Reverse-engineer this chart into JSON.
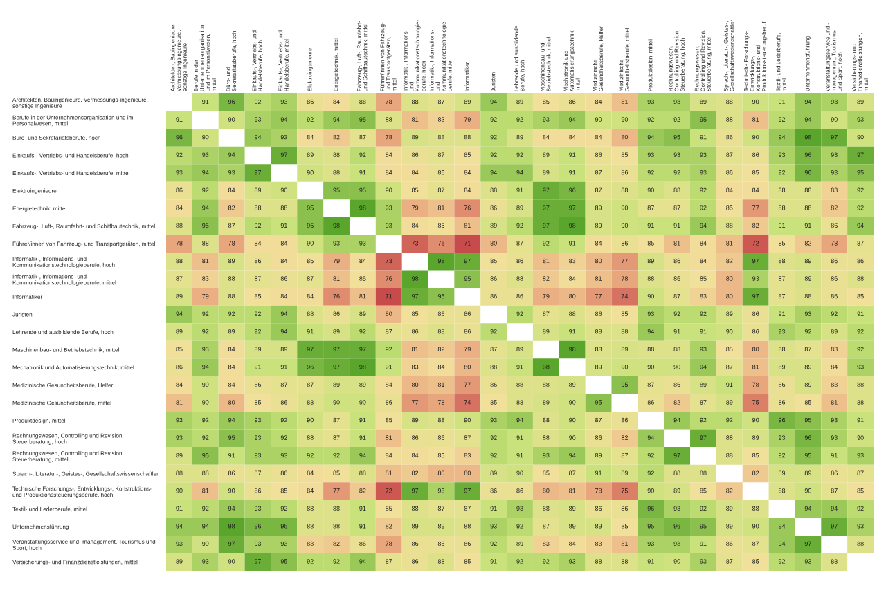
{
  "chart_data": {
    "type": "heatmap",
    "categories": [
      "Architekten, Bauingenieure,\nVermessungsingenieure,\nsonstige Ingenieure",
      "Berufe in der\nUnternehmensorganisation\nund im Personalwesen,\nmittel",
      "Büro- und\nSekretariatsberufe, hoch",
      "Einkaufs-, Vertriebs- und\nHandelsberufe, hoch",
      "Einkaufs-, Vertriebs- und\nHandelsberufe, mittel",
      "Elektroingenieure",
      "Energietechnik, mittel",
      "Fahrzeug-, Luft-, Raumfahrt-\nund Schiffbautechnik, mittel",
      "Führer/innen von Fahrzeug-\nund Transportgeräten,\nmittel",
      "Informatik-, Informations-\nund\nKommunikationstechnologie-\nberufe, hoch",
      "Informatik-, Informations-\nund\nKommunikationstechnologie-\nberufe, mittel",
      "Informatiker",
      "Juristen",
      "Lehrende und ausbildende\nBerufe, hoch",
      "Maschinenbau- und\nBetriebstechnik, mittel",
      "Mechatronik und\nAutomatisierungstechnik,\nmittel",
      "Medizinische\nGesundheitsberufe, Helfer",
      "Medizinische\nGesundheitsberufe, mittel",
      "Produktdesign, mittel",
      "Rechnungswesen,\nControlling und Revision,\nSteuerberatung, hoch",
      "Rechnungswesen,\nControlling und Revision,\nSteuerberatung, mittel",
      "Sprach-, Literatur-, Geistes-,\nGesellschaftswissenschaftler",
      "Technische Forschungs-,\nEntwicklungs-,\nKonstruktions- und\nProduktionssteuerungsberuf",
      "Textil- und Lederberufe,\nmittel",
      "Unternehmensführung",
      "Veranstaltungsservice und -\nmanagement, Tourismus\nund Sport, hoch",
      "Versicherungs- und\nFinanzdienstleistungen,\nmittel"
    ],
    "y_categories": [
      "Architekten, Bauingenieure, Vermessungs-ingenieure,\nsonstige Ingenieure",
      "Berufe in der Unternehmensorganisation und im\nPersonalwesen, mittel",
      "Büro- und Sekretariatsberufe, hoch",
      "Einkaufs-, Vertriebs- und Handelsberufe, hoch",
      "Einkaufs-, Vertriebs- und Handelsberufe, mittel",
      "Elektroingenieure",
      "Energietechnik, mittel",
      "Fahrzeug-, Luft-, Raumfahrt- und Schiffbautechnik, mittel",
      "Führer/innen von Fahrzeug- und Transportgeräten, mittel",
      "Informatik-, Informations- und\nKommunikationstechnologieberufe, hoch",
      "Informatik-, Informations- und\nKommunikationstechnologieberufe, mittel",
      "Informatiker",
      "Juristen",
      "Lehrende und ausbildende Berufe, hoch",
      "Maschinenbau- und Betriebstechnik, mittel",
      "Mechatronik und Automatisierungstechnik, mittel",
      "Medizinische Gesundheitsberufe, Helfer",
      "Medizinische Gesundheitsberufe, mittel",
      "Produktdesign, mittel",
      "Rechnungswesen, Controlling und Revision,\nSteuerberatung, hoch",
      "Rechnungswesen, Controlling und Revision,\nSteuerberatung, mittel",
      "Sprach-, Literatur-, Geistes-, Gesellschaftswissenschaftler",
      "Technische Forschungs-, Entwicklungs-, Konstruktions-\nund Produktionssteuerungsberufe, hoch",
      "Textil- und Lederberufe, mittel",
      "Unternehmensführung",
      "Veranstaltungsservice und -management, Tourismus und\nSport, hoch",
      "Versicherungs- und Finanzdienstleistungen, mittel"
    ],
    "cells": [
      [
        null,
        91,
        96,
        92,
        93,
        86,
        84,
        88,
        78,
        88,
        87,
        89,
        94,
        89,
        85,
        86,
        84,
        81,
        93,
        93,
        89,
        88,
        90,
        91,
        94,
        93,
        89
      ],
      [
        91,
        null,
        90,
        93,
        94,
        92,
        94,
        95,
        88,
        81,
        83,
        79,
        92,
        92,
        93,
        94,
        90,
        90,
        92,
        92,
        95,
        88,
        81,
        92,
        94,
        90,
        93
      ],
      [
        96,
        90,
        null,
        94,
        93,
        84,
        82,
        87,
        78,
        89,
        88,
        88,
        92,
        89,
        84,
        84,
        84,
        80,
        94,
        95,
        91,
        86,
        90,
        94,
        98,
        97,
        90
      ],
      [
        92,
        93,
        94,
        null,
        97,
        89,
        88,
        92,
        84,
        86,
        87,
        85,
        92,
        92,
        89,
        91,
        86,
        85,
        93,
        93,
        93,
        87,
        86,
        93,
        96,
        93,
        97
      ],
      [
        93,
        94,
        93,
        97,
        null,
        90,
        88,
        91,
        84,
        84,
        86,
        84,
        94,
        94,
        89,
        91,
        87,
        86,
        92,
        92,
        93,
        86,
        85,
        92,
        96,
        93,
        95
      ],
      [
        86,
        92,
        84,
        89,
        90,
        null,
        95,
        95,
        90,
        85,
        87,
        84,
        88,
        91,
        97,
        96,
        87,
        88,
        90,
        88,
        92,
        84,
        84,
        88,
        88,
        83,
        92
      ],
      [
        84,
        94,
        82,
        88,
        88,
        95,
        null,
        98,
        93,
        79,
        81,
        76,
        86,
        89,
        97,
        97,
        89,
        90,
        87,
        87,
        92,
        85,
        77,
        88,
        88,
        82,
        92
      ],
      [
        88,
        95,
        87,
        92,
        91,
        95,
        98,
        null,
        93,
        84,
        85,
        81,
        89,
        92,
        97,
        98,
        89,
        90,
        91,
        91,
        94,
        88,
        82,
        91,
        91,
        86,
        94
      ],
      [
        78,
        88,
        78,
        84,
        84,
        90,
        93,
        93,
        null,
        73,
        76,
        71,
        80,
        87,
        92,
        91,
        84,
        86,
        85,
        81,
        84,
        81,
        72,
        85,
        82,
        78,
        87
      ],
      [
        88,
        81,
        89,
        86,
        84,
        85,
        79,
        84,
        73,
        null,
        98,
        97,
        85,
        86,
        81,
        83,
        80,
        77,
        89,
        86,
        84,
        82,
        97,
        88,
        89,
        86,
        86
      ],
      [
        87,
        83,
        88,
        87,
        86,
        87,
        81,
        85,
        76,
        98,
        null,
        95,
        86,
        88,
        82,
        84,
        81,
        78,
        88,
        86,
        85,
        80,
        93,
        87,
        89,
        86,
        88
      ],
      [
        89,
        79,
        88,
        85,
        84,
        84,
        76,
        81,
        71,
        97,
        95,
        null,
        86,
        86,
        79,
        80,
        77,
        74,
        90,
        87,
        83,
        80,
        97,
        87,
        88,
        86,
        85
      ],
      [
        94,
        92,
        92,
        92,
        94,
        88,
        86,
        89,
        80,
        85,
        86,
        86,
        null,
        92,
        87,
        88,
        86,
        85,
        93,
        92,
        92,
        89,
        86,
        91,
        93,
        92,
        91
      ],
      [
        89,
        92,
        89,
        92,
        94,
        91,
        89,
        92,
        87,
        86,
        88,
        86,
        92,
        null,
        89,
        91,
        88,
        88,
        94,
        91,
        91,
        90,
        86,
        93,
        92,
        89,
        92
      ],
      [
        85,
        93,
        84,
        89,
        89,
        97,
        97,
        97,
        92,
        81,
        82,
        79,
        87,
        89,
        null,
        98,
        88,
        89,
        88,
        88,
        93,
        85,
        80,
        88,
        87,
        83,
        92
      ],
      [
        86,
        94,
        84,
        91,
        91,
        96,
        97,
        98,
        91,
        83,
        84,
        80,
        88,
        91,
        98,
        null,
        89,
        90,
        90,
        90,
        94,
        87,
        81,
        89,
        89,
        84,
        93
      ],
      [
        84,
        90,
        84,
        86,
        87,
        87,
        89,
        89,
        84,
        80,
        81,
        77,
        86,
        88,
        88,
        89,
        null,
        95,
        87,
        86,
        89,
        91,
        78,
        86,
        89,
        83,
        88
      ],
      [
        81,
        90,
        80,
        85,
        86,
        88,
        90,
        90,
        86,
        77,
        78,
        74,
        85,
        88,
        89,
        90,
        95,
        null,
        86,
        82,
        87,
        89,
        75,
        86,
        85,
        81,
        88
      ],
      [
        93,
        92,
        94,
        93,
        92,
        90,
        87,
        91,
        85,
        89,
        88,
        90,
        93,
        94,
        88,
        90,
        87,
        86,
        null,
        94,
        92,
        92,
        90,
        96,
        95,
        93,
        91
      ],
      [
        93,
        92,
        95,
        93,
        92,
        88,
        87,
        91,
        81,
        86,
        86,
        87,
        92,
        91,
        88,
        90,
        86,
        82,
        94,
        null,
        97,
        88,
        89,
        93,
        96,
        93,
        90
      ],
      [
        89,
        95,
        91,
        93,
        93,
        92,
        92,
        94,
        84,
        84,
        85,
        83,
        92,
        91,
        93,
        94,
        89,
        87,
        92,
        97,
        null,
        88,
        85,
        92,
        95,
        91,
        93
      ],
      [
        88,
        88,
        86,
        87,
        86,
        84,
        85,
        88,
        81,
        82,
        80,
        80,
        89,
        90,
        85,
        87,
        91,
        89,
        92,
        88,
        88,
        null,
        82,
        89,
        89,
        86,
        87
      ],
      [
        90,
        81,
        90,
        86,
        85,
        84,
        77,
        82,
        72,
        97,
        93,
        97,
        86,
        86,
        80,
        81,
        78,
        75,
        90,
        89,
        85,
        82,
        null,
        88,
        90,
        87,
        85
      ],
      [
        91,
        92,
        94,
        93,
        92,
        88,
        88,
        91,
        85,
        88,
        87,
        87,
        91,
        93,
        88,
        89,
        86,
        86,
        96,
        93,
        92,
        89,
        88,
        null,
        94,
        94,
        92
      ],
      [
        94,
        94,
        98,
        96,
        96,
        88,
        88,
        91,
        82,
        89,
        89,
        88,
        93,
        92,
        87,
        89,
        89,
        85,
        95,
        96,
        95,
        89,
        90,
        94,
        null,
        97,
        93
      ],
      [
        93,
        90,
        97,
        93,
        93,
        83,
        82,
        86,
        78,
        86,
        86,
        86,
        92,
        89,
        83,
        84,
        83,
        81,
        93,
        93,
        91,
        86,
        87,
        94,
        97,
        null,
        88
      ],
      [
        89,
        93,
        90,
        97,
        95,
        92,
        92,
        94,
        87,
        86,
        88,
        85,
        91,
        92,
        92,
        93,
        88,
        88,
        91,
        90,
        93,
        87,
        85,
        92,
        93,
        88,
        null
      ]
    ],
    "data_labels": true
  }
}
